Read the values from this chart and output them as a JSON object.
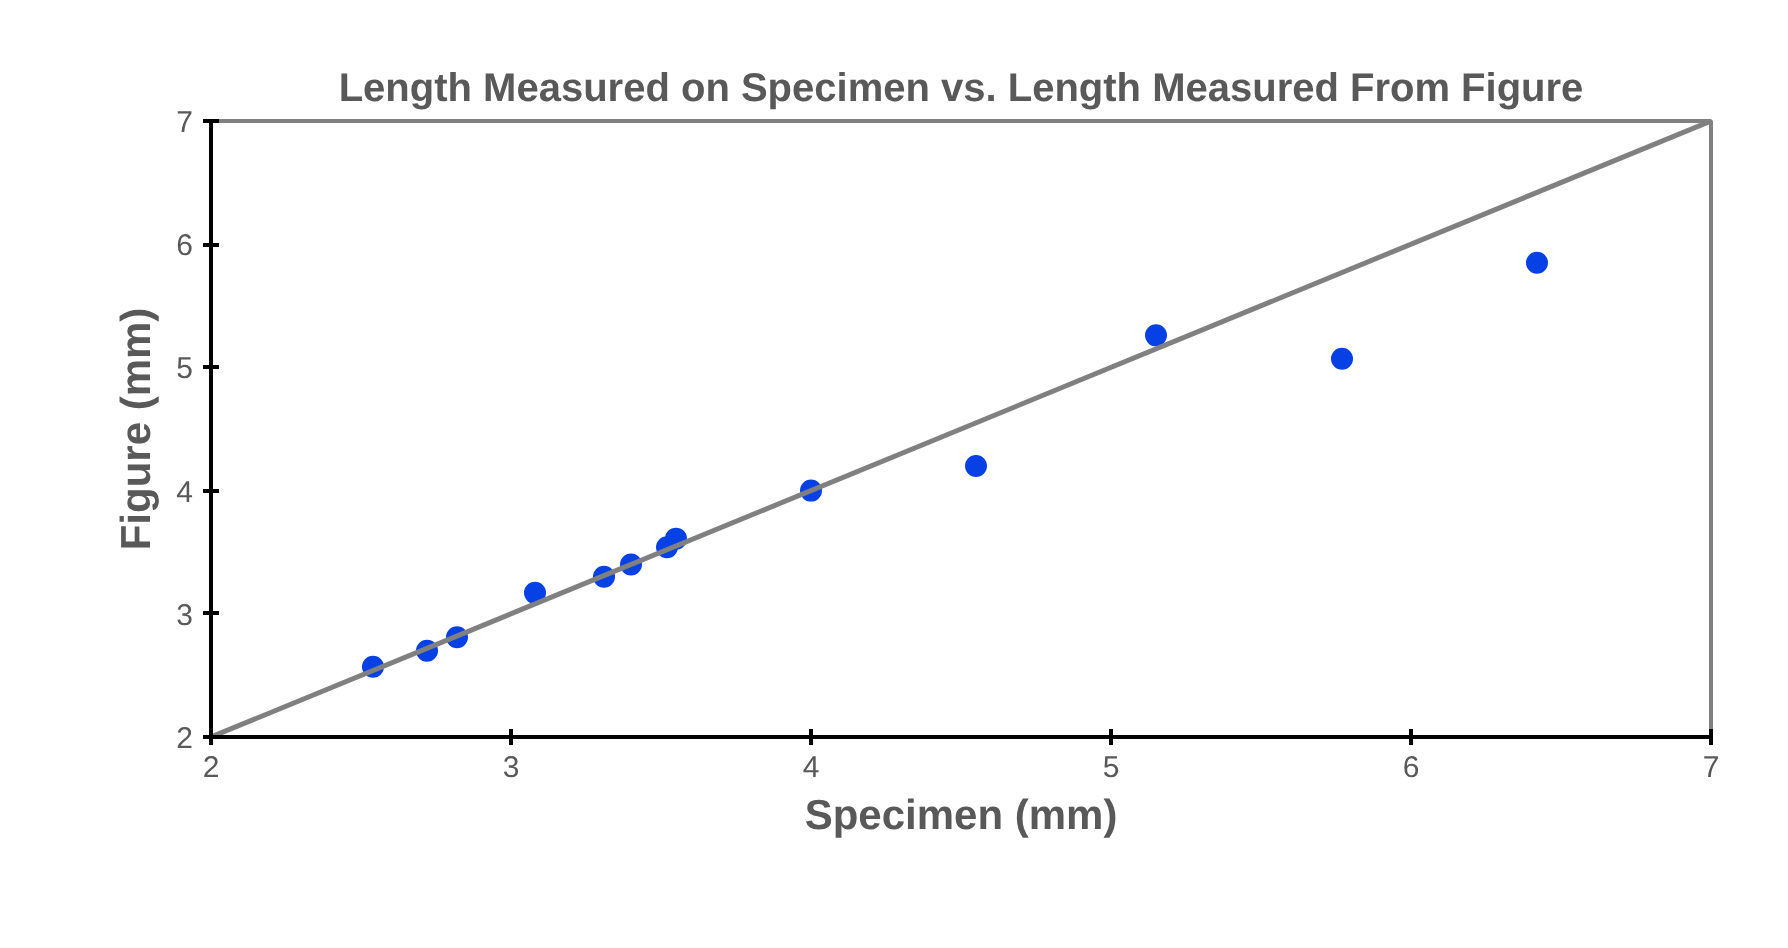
{
  "chart_data": {
    "type": "scatter",
    "title": "Length Measured on Specimen vs. Length Measured From Figure",
    "xlabel": "Specimen (mm)",
    "ylabel": "Figure (mm)",
    "xlim": [
      2,
      7
    ],
    "ylim": [
      2,
      7
    ],
    "xticks": [
      2,
      3,
      4,
      5,
      6,
      7
    ],
    "yticks": [
      2,
      3,
      4,
      5,
      6,
      7
    ],
    "grid": false,
    "marker": "circle",
    "series": [
      {
        "color": "#0641e6",
        "x": [
          2.54,
          2.72,
          2.82,
          3.08,
          3.31,
          3.4,
          3.52,
          3.55,
          4.0,
          4.55,
          5.15,
          5.77,
          6.42
        ],
        "values": [
          2.57,
          2.7,
          2.81,
          3.17,
          3.3,
          3.4,
          3.54,
          3.61,
          4.0,
          4.2,
          5.26,
          5.07,
          5.85
        ]
      },
      {
        "type": "line",
        "color": "#808080",
        "x": [
          2,
          7
        ],
        "values": [
          2,
          7
        ],
        "line_style": "solid",
        "marker": "none"
      }
    ]
  }
}
